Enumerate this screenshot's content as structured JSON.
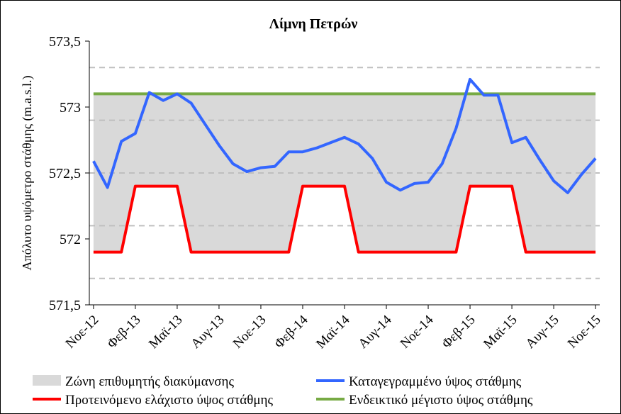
{
  "chart_data": {
    "type": "line",
    "title": "Λίμνη Πετρών",
    "xlabel": "",
    "ylabel": "Απόλυτο υψόμετρο στάθμης (m.a.s.l.)",
    "ylim": [
      571.5,
      573.5
    ],
    "yticks": [
      "571,5",
      "572",
      "572,5",
      "573",
      "573,5"
    ],
    "ytick_values": [
      571.5,
      572.0,
      572.5,
      573.0,
      573.5
    ],
    "x_ticks": [
      "Νοε-12",
      "Φεβ-13",
      "Μαϊ-13",
      "Αυγ-13",
      "Νοε-13",
      "Φεβ-14",
      "Μαϊ-14",
      "Αυγ-14",
      "Νοε-14",
      "Φεβ-15",
      "Μαϊ-15",
      "Αυγ-15",
      "Νοε-15"
    ],
    "x_range_months": [
      -0.3,
      36.3
    ],
    "grid": "dashed horizontal",
    "dashed_levels": [
      571.7,
      572.1,
      572.5,
      572.9,
      573.3
    ],
    "band": {
      "name": "Ζώνη επιθυμητής διακύμανσης",
      "color": "#d9d9d9"
    },
    "series": [
      {
        "name": "Καταγεγραμμένο ύψος στάθμης",
        "color": "#3366ff",
        "values": [
          572.59,
          572.39,
          572.74,
          572.8,
          573.11,
          573.05,
          573.1,
          573.03,
          572.87,
          572.71,
          572.57,
          572.51,
          572.54,
          572.55,
          572.66,
          572.66,
          572.69,
          572.73,
          572.77,
          572.72,
          572.61,
          572.43,
          572.37,
          572.42,
          572.43,
          572.57,
          572.84,
          573.21,
          573.09,
          573.09,
          572.73,
          572.77,
          572.6,
          572.44,
          572.35,
          572.49,
          572.61
        ]
      },
      {
        "name": "Προτεινόμενο ελάχιστο ύψος στάθμης",
        "color": "#ff0000",
        "values": [
          571.9,
          571.9,
          571.9,
          572.4,
          572.4,
          572.4,
          572.4,
          571.9,
          571.9,
          571.9,
          571.9,
          571.9,
          571.9,
          571.9,
          571.9,
          572.4,
          572.4,
          572.4,
          572.4,
          571.9,
          571.9,
          571.9,
          571.9,
          571.9,
          571.9,
          571.9,
          571.9,
          572.4,
          572.4,
          572.4,
          572.4,
          571.9,
          571.9,
          571.9,
          571.9,
          571.9,
          571.9
        ]
      },
      {
        "name": "Ενδεικτικό μέγιστο ύψος στάθμης",
        "color": "#77aa44",
        "values": [
          573.1,
          573.1,
          573.1,
          573.1,
          573.1,
          573.1,
          573.1,
          573.1,
          573.1,
          573.1,
          573.1,
          573.1,
          573.1,
          573.1,
          573.1,
          573.1,
          573.1,
          573.1,
          573.1,
          573.1,
          573.1,
          573.1,
          573.1,
          573.1,
          573.1,
          573.1,
          573.1,
          573.1,
          573.1,
          573.1,
          573.1,
          573.1,
          573.1,
          573.1,
          573.1,
          573.1,
          573.1
        ]
      }
    ],
    "legend_position": "bottom",
    "legend": [
      {
        "label": "Ζώνη επιθυμητής διακύμανσης",
        "kind": "box",
        "color": "#d9d9d9"
      },
      {
        "label": "Καταγεγραμμένο ύψος στάθμης",
        "kind": "line",
        "color": "#3366ff"
      },
      {
        "label": "Προτεινόμενο ελάχιστο ύψος στάθμης",
        "kind": "line",
        "color": "#ff0000"
      },
      {
        "label": "Ενδεικτικό μέγιστο ύψος στάθμης",
        "kind": "line",
        "color": "#77aa44"
      }
    ]
  }
}
